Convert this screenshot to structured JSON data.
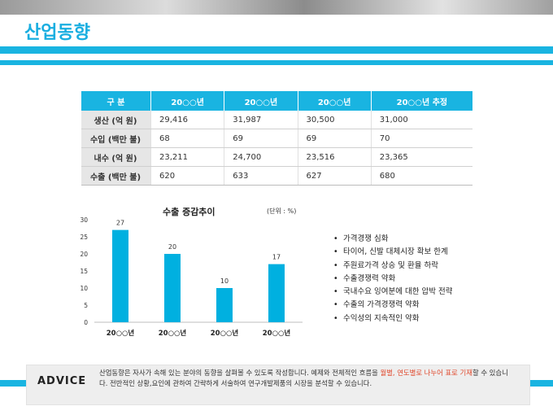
{
  "page": {
    "title": "산업동향"
  },
  "table": {
    "headers": [
      "구    분",
      "20○○년",
      "20○○년",
      "20○○년",
      "20○○년 추정"
    ],
    "rows": [
      {
        "label": "생산 (억 원)",
        "cells": [
          "29,416",
          "31,987",
          "30,500",
          "31,000"
        ]
      },
      {
        "label": "수입 (백만 불)",
        "cells": [
          "68",
          "69",
          "69",
          "70"
        ]
      },
      {
        "label": "내수 (억 원)",
        "cells": [
          "23,211",
          "24,700",
          "23,516",
          "23,365"
        ]
      },
      {
        "label": "수출 (백만 불)",
        "cells": [
          "620",
          "633",
          "627",
          "680"
        ]
      }
    ]
  },
  "chart_data": {
    "type": "bar",
    "title": "수출 증감추이",
    "unit_note": "(단위 : %)",
    "categories": [
      "20○○년",
      "20○○년",
      "20○○년",
      "20○○년"
    ],
    "values": [
      27,
      20,
      10,
      17
    ],
    "ylim": [
      0,
      30
    ],
    "yticks": [
      0,
      5,
      10,
      15,
      20,
      25,
      30
    ],
    "bar_color": "#00b0e0",
    "grid": false
  },
  "bullets": [
    "가격경쟁 심화",
    "타이어, 신발 대체시장 확보 한계",
    "주원료가격 상승 및 환율 하락",
    "수출경쟁력 약화",
    "국내수요 잉여분에 대한 압박 전략",
    "수출의 가격경쟁력 약화",
    "수익성의 지속적인 약화"
  ],
  "advice": {
    "label": "ADVICE",
    "text_before": "산업동향은 자사가 속해 있는 분야의 동향을 살펴볼 수 있도록 작성합니다. 예제와 전체적인 흐름을 ",
    "highlight": "월별, 연도별로 나누어 표로 기재",
    "text_after": "할 수 있습니다. 전반적인 상황,요인에 관하여 간략하게 서술하여 연구개발제품의 시장을 분석할 수 있습니다."
  },
  "colors": {
    "accent": "#19b4e1",
    "highlight": "#e0482c"
  }
}
